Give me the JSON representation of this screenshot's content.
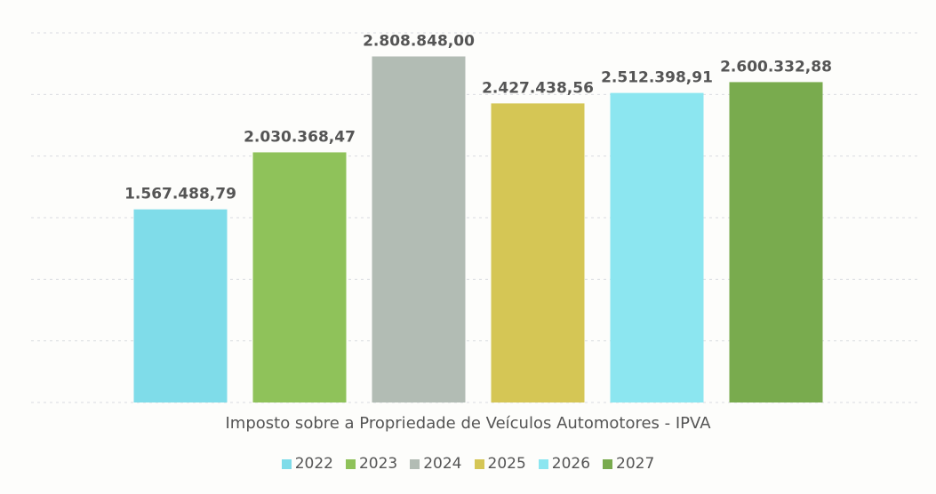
{
  "chart_data": {
    "type": "bar",
    "categories": [
      "2022",
      "2023",
      "2024",
      "2025",
      "2026",
      "2027"
    ],
    "values": [
      1567488.79,
      2030368.47,
      2808848.0,
      2427438.56,
      2512398.91,
      2600332.88
    ],
    "value_labels": [
      "1.567.488,79",
      "2.030.368,47",
      "2.808.848,00",
      "2.427.438,56",
      "2.512.398,91",
      "2.600.332,88"
    ],
    "xlabel": "Imposto sobre a Propriedade de Veículos Automotores - IPVA",
    "ylim": [
      0,
      3000000
    ],
    "grid": true,
    "legend": "bottom",
    "colors": [
      "#7fdce9",
      "#8fc25a",
      "#b2bcb4",
      "#d5c655",
      "#8ce6f0",
      "#79ab4e"
    ],
    "legend_entries": [
      "2022",
      "2023",
      "2024",
      "2025",
      "2026",
      "2027"
    ]
  }
}
